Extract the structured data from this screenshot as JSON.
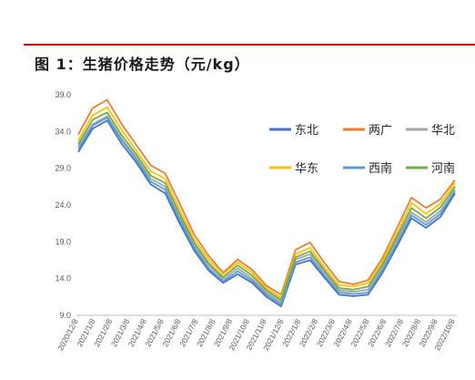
{
  "title": "图 1：生猪价格走势（元/kg）",
  "chart_data": {
    "type": "line",
    "title": "图 1：生猪价格走势（元/kg）",
    "ylim": [
      9.0,
      39.0
    ],
    "yticks": [
      "9.0",
      "14.0",
      "19.0",
      "24.0",
      "29.0",
      "34.0",
      "39.0"
    ],
    "xticks": [
      "2020/12/8",
      "2021/1/8",
      "2021/2/8",
      "2021/3/8",
      "2021/4/8",
      "2021/5/8",
      "2021/6/8",
      "2021/7/8",
      "2021/8/8",
      "2021/9/8",
      "2021/10/8",
      "2021/11/8",
      "2021/12/8",
      "2022/1/8",
      "2022/2/8",
      "2022/3/8",
      "2022/4/8",
      "2022/5/8",
      "2022/6/8",
      "2022/7/8",
      "2022/8/8",
      "2022/9/8",
      "2022/10/8"
    ],
    "legend_position": "top-right",
    "grid": false,
    "series": [
      {
        "name": "东北",
        "color": "#4472c4",
        "values": [
          31.2,
          34.4,
          35.5,
          32.3,
          29.8,
          26.8,
          25.6,
          21.5,
          17.8,
          15.1,
          13.4,
          14.6,
          13.4,
          11.5,
          10.2,
          15.9,
          16.5,
          14.1,
          11.8,
          11.6,
          11.8,
          14.8,
          18.4,
          22.2,
          20.9,
          22.4,
          25.6
        ]
      },
      {
        "name": "两广",
        "color": "#ed7d31",
        "values": [
          33.6,
          37.2,
          38.3,
          35.0,
          32.2,
          29.4,
          28.3,
          24.2,
          20.0,
          17.1,
          14.8,
          16.6,
          15.2,
          13.0,
          11.8,
          17.9,
          18.9,
          16.1,
          13.6,
          13.2,
          13.8,
          16.8,
          20.9,
          25.0,
          23.6,
          24.8,
          27.4
        ]
      },
      {
        "name": "华北",
        "color": "#a5a5a5",
        "values": [
          32.0,
          35.0,
          36.1,
          33.0,
          30.5,
          27.6,
          26.5,
          22.4,
          18.6,
          15.8,
          13.9,
          15.4,
          14.0,
          12.1,
          10.8,
          16.6,
          17.3,
          14.8,
          12.4,
          12.2,
          12.5,
          15.5,
          19.3,
          23.0,
          21.7,
          23.2,
          26.1
        ]
      },
      {
        "name": "华东",
        "color": "#ffc000",
        "values": [
          32.8,
          36.2,
          37.3,
          34.2,
          31.4,
          28.6,
          27.6,
          23.4,
          19.4,
          16.6,
          14.6,
          16.2,
          14.8,
          12.7,
          11.4,
          17.3,
          18.2,
          15.5,
          13.1,
          12.9,
          13.4,
          16.3,
          20.2,
          24.3,
          22.8,
          24.2,
          27.0
        ]
      },
      {
        "name": "西南",
        "color": "#5b9bd5",
        "values": [
          31.6,
          34.8,
          35.9,
          32.8,
          30.2,
          27.2,
          26.1,
          22.0,
          18.2,
          15.4,
          13.6,
          15.0,
          13.7,
          11.8,
          10.5,
          16.2,
          16.9,
          14.4,
          12.1,
          11.9,
          12.1,
          15.1,
          18.8,
          22.6,
          21.3,
          22.8,
          25.9
        ]
      },
      {
        "name": "河南",
        "color": "#70ad47",
        "values": [
          32.3,
          35.6,
          36.6,
          33.5,
          30.9,
          28.0,
          27.0,
          22.8,
          18.9,
          16.1,
          14.2,
          15.8,
          14.4,
          12.4,
          11.1,
          16.9,
          17.7,
          15.1,
          12.7,
          12.5,
          12.9,
          15.9,
          19.7,
          23.6,
          22.2,
          23.7,
          26.5
        ]
      }
    ]
  }
}
